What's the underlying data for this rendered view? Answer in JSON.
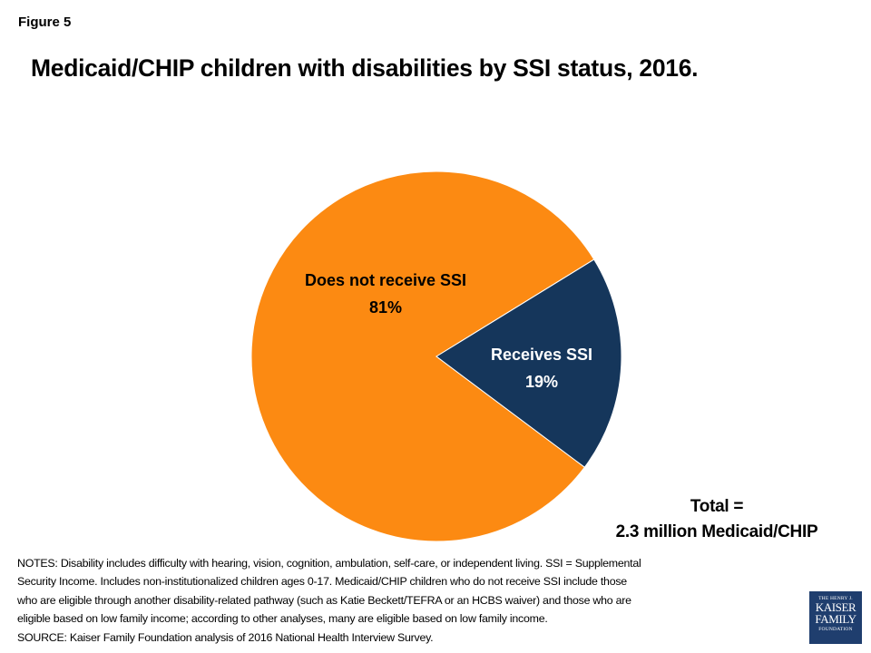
{
  "figure_label": "Figure 5",
  "chart_data": {
    "type": "pie",
    "title": "Medicaid/CHIP children with disabilities by SSI status, 2016.",
    "slices": [
      {
        "label": "Does not receive SSI",
        "value": 81,
        "value_label": "81%",
        "color": "#fc8a12"
      },
      {
        "label": "Receives SSI",
        "value": 19,
        "value_label": "19%",
        "color": "#15365b"
      }
    ],
    "annotation": [
      "Total =",
      "2.3 million Medicaid/CHIP"
    ]
  },
  "notes": [
    "NOTES: Disability includes difficulty with hearing, vision, cognition, ambulation, self-care, or independent living.  SSI = Supplemental",
    "Security Income.  Includes non-institutionalized children ages 0-17.  Medicaid/CHIP children who do not receive SSI include those",
    "who are eligible through another disability-related pathway (such as Katie Beckett/TEFRA or an HCBS waiver) and those who are",
    "eligible based on low family income; according to other analyses, many are eligible based on low family income.",
    "SOURCE: Kaiser Family Foundation analysis of 2016 National Health Interview Survey."
  ],
  "logo": {
    "line1": "THE HENRY J.",
    "line2": "KAISER",
    "line3": "FAMILY",
    "line4": "FOUNDATION"
  }
}
